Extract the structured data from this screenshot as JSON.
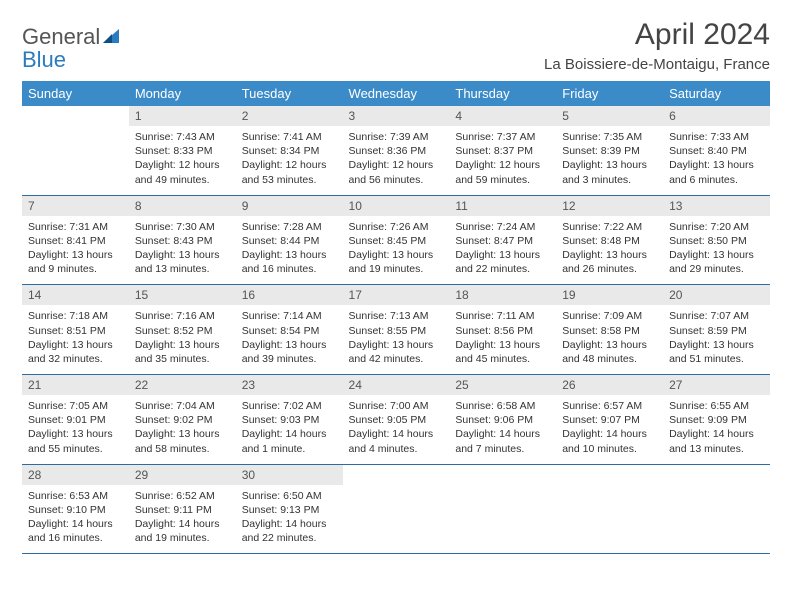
{
  "brand": {
    "word1": "General",
    "word2": "Blue"
  },
  "title": "April 2024",
  "location": "La Boissiere-de-Montaigu, France",
  "weekdays": [
    "Sunday",
    "Monday",
    "Tuesday",
    "Wednesday",
    "Thursday",
    "Friday",
    "Saturday"
  ],
  "colors": {
    "header_bg": "#3b8bc9",
    "header_text": "#ffffff",
    "daynum_bg": "#e9e9e9",
    "border": "#2b6ca3",
    "brand_blue": "#2b7bbf"
  },
  "weeks": [
    [
      {
        "n": "",
        "sr": "",
        "ss": "",
        "dl": ""
      },
      {
        "n": "1",
        "sr": "Sunrise: 7:43 AM",
        "ss": "Sunset: 8:33 PM",
        "dl": "Daylight: 12 hours and 49 minutes."
      },
      {
        "n": "2",
        "sr": "Sunrise: 7:41 AM",
        "ss": "Sunset: 8:34 PM",
        "dl": "Daylight: 12 hours and 53 minutes."
      },
      {
        "n": "3",
        "sr": "Sunrise: 7:39 AM",
        "ss": "Sunset: 8:36 PM",
        "dl": "Daylight: 12 hours and 56 minutes."
      },
      {
        "n": "4",
        "sr": "Sunrise: 7:37 AM",
        "ss": "Sunset: 8:37 PM",
        "dl": "Daylight: 12 hours and 59 minutes."
      },
      {
        "n": "5",
        "sr": "Sunrise: 7:35 AM",
        "ss": "Sunset: 8:39 PM",
        "dl": "Daylight: 13 hours and 3 minutes."
      },
      {
        "n": "6",
        "sr": "Sunrise: 7:33 AM",
        "ss": "Sunset: 8:40 PM",
        "dl": "Daylight: 13 hours and 6 minutes."
      }
    ],
    [
      {
        "n": "7",
        "sr": "Sunrise: 7:31 AM",
        "ss": "Sunset: 8:41 PM",
        "dl": "Daylight: 13 hours and 9 minutes."
      },
      {
        "n": "8",
        "sr": "Sunrise: 7:30 AM",
        "ss": "Sunset: 8:43 PM",
        "dl": "Daylight: 13 hours and 13 minutes."
      },
      {
        "n": "9",
        "sr": "Sunrise: 7:28 AM",
        "ss": "Sunset: 8:44 PM",
        "dl": "Daylight: 13 hours and 16 minutes."
      },
      {
        "n": "10",
        "sr": "Sunrise: 7:26 AM",
        "ss": "Sunset: 8:45 PM",
        "dl": "Daylight: 13 hours and 19 minutes."
      },
      {
        "n": "11",
        "sr": "Sunrise: 7:24 AM",
        "ss": "Sunset: 8:47 PM",
        "dl": "Daylight: 13 hours and 22 minutes."
      },
      {
        "n": "12",
        "sr": "Sunrise: 7:22 AM",
        "ss": "Sunset: 8:48 PM",
        "dl": "Daylight: 13 hours and 26 minutes."
      },
      {
        "n": "13",
        "sr": "Sunrise: 7:20 AM",
        "ss": "Sunset: 8:50 PM",
        "dl": "Daylight: 13 hours and 29 minutes."
      }
    ],
    [
      {
        "n": "14",
        "sr": "Sunrise: 7:18 AM",
        "ss": "Sunset: 8:51 PM",
        "dl": "Daylight: 13 hours and 32 minutes."
      },
      {
        "n": "15",
        "sr": "Sunrise: 7:16 AM",
        "ss": "Sunset: 8:52 PM",
        "dl": "Daylight: 13 hours and 35 minutes."
      },
      {
        "n": "16",
        "sr": "Sunrise: 7:14 AM",
        "ss": "Sunset: 8:54 PM",
        "dl": "Daylight: 13 hours and 39 minutes."
      },
      {
        "n": "17",
        "sr": "Sunrise: 7:13 AM",
        "ss": "Sunset: 8:55 PM",
        "dl": "Daylight: 13 hours and 42 minutes."
      },
      {
        "n": "18",
        "sr": "Sunrise: 7:11 AM",
        "ss": "Sunset: 8:56 PM",
        "dl": "Daylight: 13 hours and 45 minutes."
      },
      {
        "n": "19",
        "sr": "Sunrise: 7:09 AM",
        "ss": "Sunset: 8:58 PM",
        "dl": "Daylight: 13 hours and 48 minutes."
      },
      {
        "n": "20",
        "sr": "Sunrise: 7:07 AM",
        "ss": "Sunset: 8:59 PM",
        "dl": "Daylight: 13 hours and 51 minutes."
      }
    ],
    [
      {
        "n": "21",
        "sr": "Sunrise: 7:05 AM",
        "ss": "Sunset: 9:01 PM",
        "dl": "Daylight: 13 hours and 55 minutes."
      },
      {
        "n": "22",
        "sr": "Sunrise: 7:04 AM",
        "ss": "Sunset: 9:02 PM",
        "dl": "Daylight: 13 hours and 58 minutes."
      },
      {
        "n": "23",
        "sr": "Sunrise: 7:02 AM",
        "ss": "Sunset: 9:03 PM",
        "dl": "Daylight: 14 hours and 1 minute."
      },
      {
        "n": "24",
        "sr": "Sunrise: 7:00 AM",
        "ss": "Sunset: 9:05 PM",
        "dl": "Daylight: 14 hours and 4 minutes."
      },
      {
        "n": "25",
        "sr": "Sunrise: 6:58 AM",
        "ss": "Sunset: 9:06 PM",
        "dl": "Daylight: 14 hours and 7 minutes."
      },
      {
        "n": "26",
        "sr": "Sunrise: 6:57 AM",
        "ss": "Sunset: 9:07 PM",
        "dl": "Daylight: 14 hours and 10 minutes."
      },
      {
        "n": "27",
        "sr": "Sunrise: 6:55 AM",
        "ss": "Sunset: 9:09 PM",
        "dl": "Daylight: 14 hours and 13 minutes."
      }
    ],
    [
      {
        "n": "28",
        "sr": "Sunrise: 6:53 AM",
        "ss": "Sunset: 9:10 PM",
        "dl": "Daylight: 14 hours and 16 minutes."
      },
      {
        "n": "29",
        "sr": "Sunrise: 6:52 AM",
        "ss": "Sunset: 9:11 PM",
        "dl": "Daylight: 14 hours and 19 minutes."
      },
      {
        "n": "30",
        "sr": "Sunrise: 6:50 AM",
        "ss": "Sunset: 9:13 PM",
        "dl": "Daylight: 14 hours and 22 minutes."
      },
      {
        "n": "",
        "sr": "",
        "ss": "",
        "dl": ""
      },
      {
        "n": "",
        "sr": "",
        "ss": "",
        "dl": ""
      },
      {
        "n": "",
        "sr": "",
        "ss": "",
        "dl": ""
      },
      {
        "n": "",
        "sr": "",
        "ss": "",
        "dl": ""
      }
    ]
  ]
}
